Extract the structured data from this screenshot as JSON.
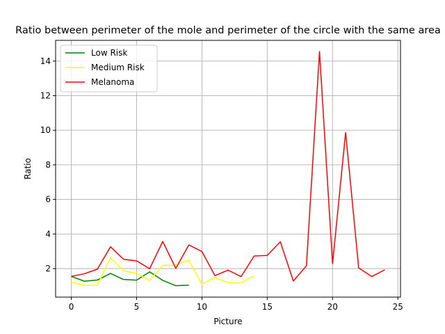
{
  "chart_data": {
    "type": "line",
    "title": "Ratio between perimeter of the mole and perimeter of the circle with the same area",
    "xlabel": "Picture",
    "ylabel": "Ratio",
    "xlim": [
      -1.2,
      25.2
    ],
    "ylim": [
      0.35,
      15.2
    ],
    "xticks": [
      0,
      5,
      10,
      15,
      20,
      25
    ],
    "yticks": [
      2,
      4,
      6,
      8,
      10,
      12,
      14
    ],
    "grid": true,
    "legend_position": "top-left",
    "series": [
      {
        "name": "Low Risk",
        "color": "#008000",
        "x": [
          0,
          1,
          2,
          3,
          4,
          5,
          6,
          7,
          8,
          9
        ],
        "y": [
          1.55,
          1.27,
          1.34,
          1.72,
          1.37,
          1.33,
          1.81,
          1.32,
          1.01,
          1.04
        ]
      },
      {
        "name": "Medium Risk",
        "color": "#ffff00",
        "x": [
          0,
          1,
          2,
          3,
          4,
          5,
          6,
          7,
          8,
          9,
          10,
          11,
          12,
          13,
          14
        ],
        "y": [
          1.22,
          1.03,
          1.04,
          2.63,
          1.87,
          1.73,
          1.31,
          2.18,
          2.19,
          2.49,
          1.1,
          1.49,
          1.18,
          1.17,
          1.58
        ]
      },
      {
        "name": "Melanoma",
        "color": "#ff0000",
        "x": [
          0,
          1,
          2,
          3,
          4,
          5,
          6,
          7,
          8,
          9,
          10,
          11,
          12,
          13,
          14,
          15,
          16,
          17,
          18,
          19,
          20,
          21,
          22,
          23,
          24
        ],
        "y": [
          1.55,
          1.7,
          1.97,
          3.26,
          2.54,
          2.45,
          1.99,
          3.57,
          2.01,
          3.37,
          2.99,
          1.59,
          1.91,
          1.54,
          2.73,
          2.76,
          3.55,
          1.28,
          2.16,
          14.55,
          2.28,
          9.87,
          2.04,
          1.54,
          1.93
        ]
      }
    ]
  }
}
